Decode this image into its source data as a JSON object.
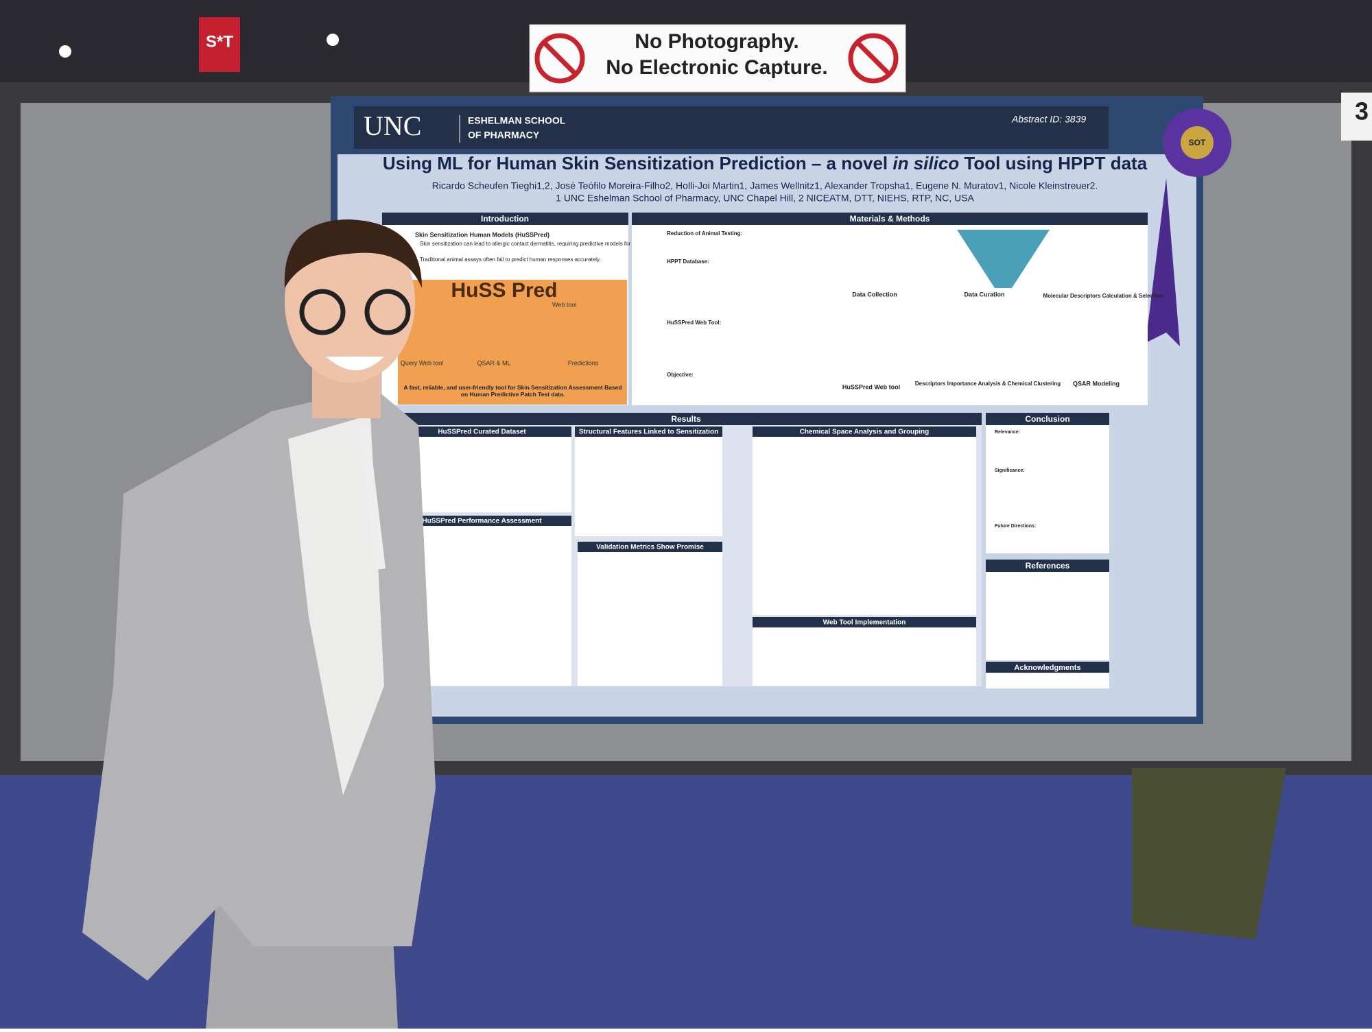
{
  "sign": {
    "line1": "No Photography.",
    "line2": "No Electronic Capture."
  },
  "banner": "S*T",
  "booth_number": "3",
  "poster": {
    "header": {
      "logo": "UNC",
      "school_line1": "ESHELMAN SCHOOL",
      "school_line2": "OF PHARMACY",
      "abstract_id": "Abstract ID: 3839"
    },
    "title_start": "Using ML for Human Skin Sensitization Prediction – a novel ",
    "title_italic": "in silico",
    "title_end": " Tool using HPPT data",
    "authors": "Ricardo Scheufen Tieghi1,2, José Teófilo Moreira-Filho2, Holli-Joi Martin1, James Wellnitz1, Alexander Tropsha1, Eugene N. Muratov1, Nicole Kleinstreuer2.",
    "affiliations": "1 UNC Eshelman School of Pharmacy, UNC Chapel Hill, 2 NICEATM, DTT, NIEHS, RTP, NC, USA",
    "ribbon": "SOT",
    "sections": {
      "introduction": {
        "heading": "Introduction",
        "subheading": "Skin Sensitization Human Models (HuSSPred)",
        "bullets": [
          "Skin sensitization can lead to allergic contact dermatitis, requiring predictive models for safety assessment.",
          "Traditional animal assays often fail to predict human responses accurately."
        ],
        "tool_name": "HuSS Pred",
        "tool_sub": "Web tool",
        "flow": [
          "Query Web tool",
          "QSAR & ML",
          "Predictions"
        ],
        "tagline": "A fast, reliable, and user-friendly tool for Skin Sensitization Assessment Based on Human Predictive Patch Test data."
      },
      "methods": {
        "heading": "Materials & Methods",
        "items": [
          "Reduction of Animal Testing:",
          "HPPT Database:",
          "HuSSPred Web Tool:",
          "Objective:"
        ],
        "steps": [
          "Data Collection",
          "Data Curation",
          "Molecular Descriptors Calculation & Selection",
          "QSAR Modeling",
          "Descriptors Importance Analysis & Chemical Clustering",
          "HuSSPred Web tool"
        ]
      },
      "results": {
        "heading": "Results",
        "panels": [
          "HuSSPred Curated Dataset",
          "Structural Features Linked to Sensitization",
          "Chemical Space Analysis and Grouping",
          "HuSSPred Performance Assessment",
          "Validation Metrics Show Promise",
          "Web Tool Implementation"
        ]
      },
      "conclusion": {
        "heading": "Conclusion",
        "items": [
          "Relevance:",
          "Significance:",
          "Future Directions:"
        ]
      },
      "references": {
        "heading": "References"
      },
      "acknowledgments": {
        "heading": "Acknowledgments"
      }
    }
  }
}
